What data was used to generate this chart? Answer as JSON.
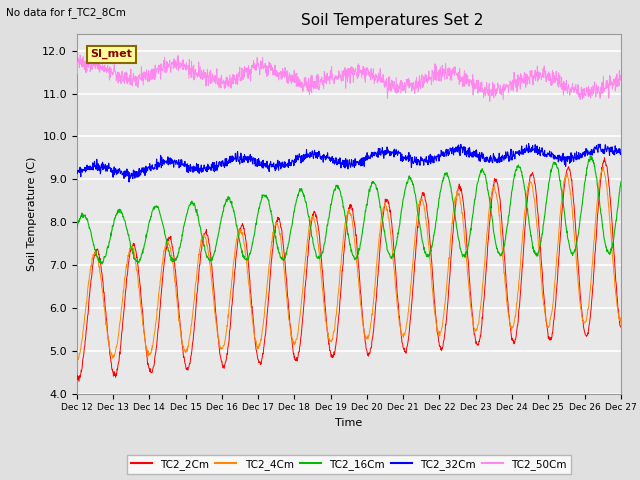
{
  "title": "Soil Temperatures Set 2",
  "top_left_text": "No data for f_TC2_8Cm",
  "ylabel": "Soil Temperature (C)",
  "xlabel": "Time",
  "ylim": [
    4.0,
    12.4
  ],
  "yticks": [
    4.0,
    5.0,
    6.0,
    7.0,
    8.0,
    9.0,
    10.0,
    11.0,
    12.0
  ],
  "background_color": "#e0e0e0",
  "plot_bg_color": "#e8e8e8",
  "grid_color": "#ffffff",
  "legend_labels": [
    "TC2_2Cm",
    "TC2_4Cm",
    "TC2_16Cm",
    "TC2_32Cm",
    "TC2_50Cm"
  ],
  "line_colors": [
    "#ff0000",
    "#ff8800",
    "#00bb00",
    "#0000ff",
    "#ff88ee"
  ],
  "annotation_text": "SI_met",
  "annotation_color": "#880000",
  "annotation_bg": "#ffff99",
  "xtick_labels": [
    "Dec 12",
    "Dec 13",
    "Dec 14",
    "Dec 15",
    "Dec 16",
    "Dec 17",
    "Dec 18",
    "Dec 19",
    "Dec 20",
    "Dec 21",
    "Dec 22",
    "Dec 23",
    "Dec 24",
    "Dec 25",
    "Dec 26",
    "Dec 27"
  ],
  "n_points": 1500
}
